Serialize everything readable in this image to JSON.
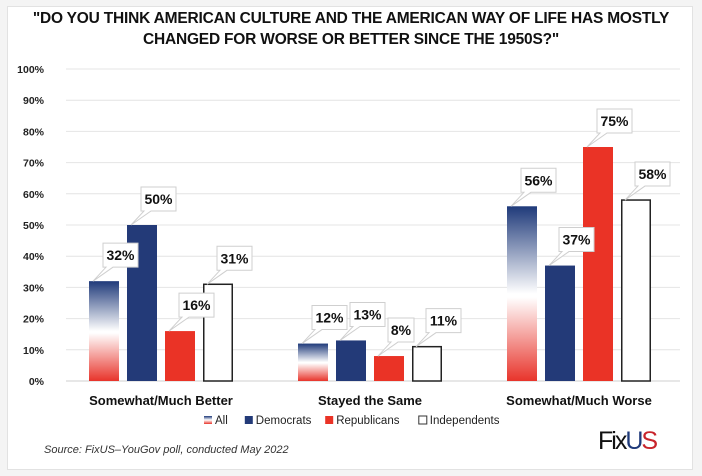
{
  "chart_data": {
    "type": "bar",
    "title": "\"DO YOU THINK AMERICAN CULTURE AND THE AMERICAN WAY OF LIFE HAS MOSTLY CHANGED FOR WORSE OR BETTER SINCE THE 1950S?\"",
    "title_lines": [
      "\"DO YOU THINK AMERICAN CULTURE AND THE AMERICAN WAY OF LIFE HAS MOSTLY",
      "CHANGED FOR WORSE OR BETTER SINCE THE 1950S?\""
    ],
    "categories": [
      "Somewhat/Much Better",
      "Stayed the Same",
      "Somewhat/Much Worse"
    ],
    "series": [
      {
        "name": "All",
        "values": [
          32,
          12,
          56
        ],
        "style": "gradient",
        "colors": [
          "#1f3a7a",
          "#ffffff",
          "#e8342b"
        ]
      },
      {
        "name": "Democrats",
        "values": [
          50,
          13,
          37
        ],
        "style": "solid",
        "colors": [
          "#233a78"
        ]
      },
      {
        "name": "Republicans",
        "values": [
          16,
          8,
          75
        ],
        "style": "solid",
        "colors": [
          "#ea3326"
        ]
      },
      {
        "name": "Independents",
        "values": [
          31,
          11,
          58
        ],
        "style": "outline",
        "colors": [
          "#ffffff",
          "#222222"
        ]
      }
    ],
    "data_labels": [
      [
        "32%",
        "50%",
        "16%",
        "31%"
      ],
      [
        "12%",
        "13%",
        "8%",
        "11%"
      ],
      [
        "56%",
        "37%",
        "75%",
        "58%"
      ]
    ],
    "yticks": [
      "0%",
      "10%",
      "20%",
      "30%",
      "40%",
      "50%",
      "60%",
      "70%",
      "80%",
      "90%",
      "100%"
    ],
    "ylim": [
      0,
      100
    ],
    "xlabel": "",
    "ylabel": "",
    "grid": true,
    "legend_position": "bottom-center",
    "legend": [
      "All",
      "Democrats",
      "Republicans",
      "Independents"
    ]
  },
  "source": "Source: FixUS–YouGov poll, conducted May 2022",
  "logo": {
    "part1": "Fix",
    "part2": "U",
    "part3": "S"
  }
}
